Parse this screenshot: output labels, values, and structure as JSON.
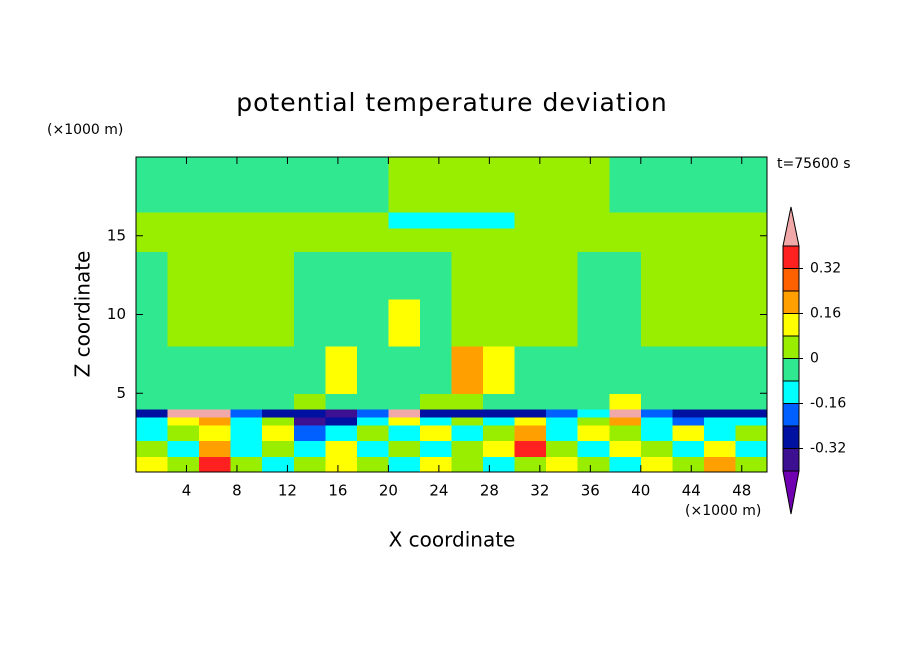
{
  "chart_data": {
    "type": "contour",
    "title": "potential temperature deviation",
    "x_label": "X coordinate",
    "y_label": "Z coordinate",
    "x_unit": "(×1000 m)",
    "y_unit": "(×1000 m)",
    "time_label": "t=75600 s",
    "xlim": [
      0,
      50
    ],
    "ylim": [
      0,
      20
    ],
    "xticks": [
      4,
      8,
      12,
      16,
      20,
      24,
      28,
      32,
      36,
      40,
      44,
      48
    ],
    "yticks": [
      5,
      10,
      15
    ],
    "x": [
      0,
      2.5,
      5,
      7.5,
      10,
      12.5,
      15,
      17.5,
      20,
      22.5,
      25,
      27.5,
      30,
      32.5,
      35,
      37.5,
      40,
      42.5,
      45,
      47.5,
      50
    ],
    "z": [
      0,
      1,
      2,
      3,
      3.5,
      4,
      5,
      8,
      11,
      14,
      15.5,
      16.5,
      20
    ],
    "values": [
      [
        0.12,
        0.04,
        0.36,
        0.04,
        -0.12,
        0.04,
        0.12,
        0.04,
        -0.12,
        0.12,
        0.04,
        -0.12,
        0.04,
        0.12,
        0.04,
        -0.12,
        0.12,
        0.04,
        0.2,
        0.04
      ],
      [
        0.04,
        -0.12,
        0.2,
        -0.12,
        0.04,
        -0.12,
        0.12,
        -0.12,
        0.04,
        -0.12,
        0.04,
        0.12,
        0.36,
        0.04,
        -0.12,
        0.12,
        0.04,
        -0.12,
        0.12,
        -0.12
      ],
      [
        -0.12,
        0.04,
        0.12,
        -0.12,
        0.12,
        -0.2,
        -0.12,
        0.04,
        -0.12,
        0.12,
        -0.12,
        0.04,
        0.2,
        -0.12,
        0.12,
        0.04,
        -0.12,
        0.12,
        -0.12,
        0.04
      ],
      [
        -0.12,
        0.12,
        0.2,
        -0.12,
        0.04,
        -0.36,
        -0.28,
        -0.12,
        0.12,
        -0.12,
        0.04,
        -0.12,
        0.12,
        -0.12,
        0.04,
        0.2,
        -0.12,
        -0.2,
        -0.12,
        -0.12
      ],
      [
        -0.28,
        0.45,
        0.45,
        -0.2,
        -0.28,
        -0.28,
        -0.36,
        -0.2,
        0.45,
        -0.28,
        -0.28,
        -0.28,
        -0.28,
        -0.2,
        -0.12,
        0.45,
        -0.2,
        -0.28,
        -0.28,
        -0.28
      ],
      [
        -0.04,
        -0.04,
        -0.04,
        -0.04,
        -0.04,
        0.04,
        -0.04,
        -0.04,
        -0.04,
        0.04,
        0.04,
        -0.04,
        -0.04,
        -0.04,
        -0.04,
        0.12,
        -0.04,
        -0.04,
        -0.04,
        -0.04
      ],
      [
        -0.04,
        -0.04,
        -0.04,
        -0.04,
        -0.04,
        -0.04,
        0.12,
        -0.04,
        -0.04,
        -0.04,
        0.2,
        0.12,
        -0.04,
        -0.04,
        -0.04,
        -0.04,
        -0.04,
        -0.04,
        -0.04,
        -0.04
      ],
      [
        -0.04,
        0.04,
        0.04,
        0.04,
        0.04,
        -0.04,
        -0.04,
        -0.04,
        0.12,
        -0.04,
        0.04,
        0.04,
        0.04,
        0.04,
        -0.04,
        -0.04,
        0.04,
        0.04,
        0.04,
        0.04
      ],
      [
        -0.04,
        0.04,
        0.04,
        0.04,
        0.04,
        -0.04,
        -0.04,
        -0.04,
        -0.04,
        -0.04,
        0.04,
        0.04,
        0.04,
        0.04,
        -0.04,
        -0.04,
        0.04,
        0.04,
        0.04,
        0.04
      ],
      [
        0.04,
        0.04,
        0.04,
        0.04,
        0.04,
        0.04,
        0.04,
        0.04,
        0.04,
        0.04,
        0.04,
        0.04,
        0.04,
        0.04,
        0.04,
        0.04,
        0.04,
        0.04,
        0.04,
        0.04
      ],
      [
        0.04,
        0.04,
        0.04,
        0.04,
        0.04,
        0.04,
        0.04,
        0.04,
        -0.12,
        -0.12,
        -0.12,
        -0.12,
        0.04,
        0.04,
        0.04,
        0.04,
        0.04,
        0.04,
        0.04,
        0.04
      ],
      [
        -0.04,
        -0.04,
        -0.04,
        -0.04,
        -0.04,
        -0.04,
        -0.04,
        -0.04,
        0.04,
        0.04,
        0.04,
        0.04,
        0.04,
        0.04,
        0.04,
        -0.04,
        -0.04,
        -0.04,
        -0.04,
        -0.04
      ]
    ],
    "levels": [
      -0.4,
      -0.32,
      -0.24,
      -0.16,
      -0.08,
      0,
      0.08,
      0.16,
      0.24,
      0.32,
      0.4
    ],
    "colors": [
      "#7000b0",
      "#3c1090",
      "#0010a0",
      "#0060ff",
      "#00ffff",
      "#30e890",
      "#99ee00",
      "#ffff00",
      "#ffa000",
      "#ff6000",
      "#ff2020",
      "#f0a8a8"
    ],
    "colorbar_ticks": [
      -0.32,
      -0.16,
      0,
      0.16,
      0.32
    ]
  }
}
